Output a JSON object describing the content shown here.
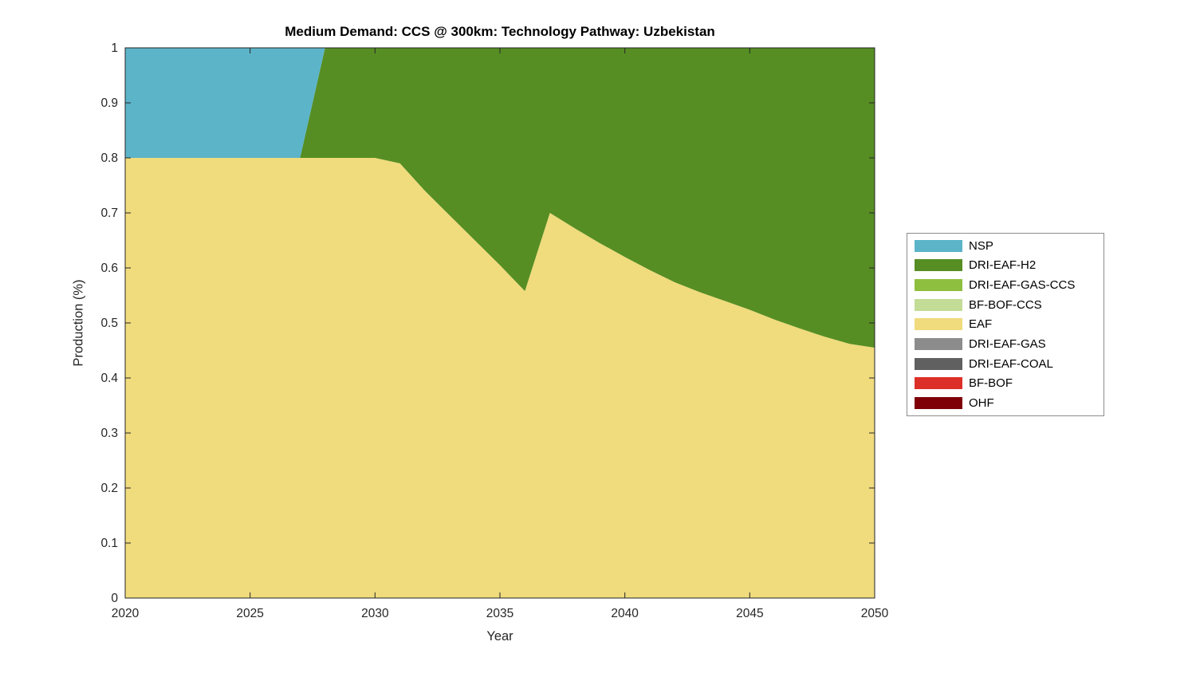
{
  "figure": {
    "title": "Medium Demand: CCS @ 300km: Technology Pathway: Uzbekistan",
    "xlabel": "Year",
    "ylabel": "Production (%)"
  },
  "chart_data": {
    "type": "area",
    "stacked": true,
    "title": "Medium Demand: CCS @ 300km: Technology Pathway: Uzbekistan",
    "xlabel": "Year",
    "ylabel": "Production (%)",
    "xlim": [
      2020,
      2050
    ],
    "ylim": [
      0,
      1
    ],
    "grid": false,
    "legend_position": "right-outside",
    "x_ticks": [
      "2020",
      "2025",
      "2030",
      "2035",
      "2040",
      "2045",
      "2050"
    ],
    "x_tick_values": [
      2020,
      2025,
      2030,
      2035,
      2040,
      2045,
      2050
    ],
    "y_ticks": [
      "0",
      "0.1",
      "0.2",
      "0.3",
      "0.4",
      "0.5",
      "0.6",
      "0.7",
      "0.8",
      "0.9",
      "1"
    ],
    "y_tick_values": [
      0,
      0.1,
      0.2,
      0.3,
      0.4,
      0.5,
      0.6,
      0.7,
      0.8,
      0.9,
      1
    ],
    "x": [
      2020,
      2021,
      2022,
      2023,
      2024,
      2025,
      2026,
      2027,
      2028,
      2029,
      2030,
      2031,
      2032,
      2033,
      2034,
      2035,
      2036,
      2037,
      2038,
      2039,
      2040,
      2041,
      2042,
      2043,
      2044,
      2045,
      2046,
      2047,
      2048,
      2049,
      2050
    ],
    "series": [
      {
        "name": "OHF",
        "color": "#800008",
        "values": [
          0,
          0,
          0,
          0,
          0,
          0,
          0,
          0,
          0,
          0,
          0,
          0,
          0,
          0,
          0,
          0,
          0,
          0,
          0,
          0,
          0,
          0,
          0,
          0,
          0,
          0,
          0,
          0,
          0,
          0,
          0
        ]
      },
      {
        "name": "BF-BOF",
        "color": "#DC2F27",
        "values": [
          0,
          0,
          0,
          0,
          0,
          0,
          0,
          0,
          0,
          0,
          0,
          0,
          0,
          0,
          0,
          0,
          0,
          0,
          0,
          0,
          0,
          0,
          0,
          0,
          0,
          0,
          0,
          0,
          0,
          0,
          0
        ]
      },
      {
        "name": "DRI-EAF-COAL",
        "color": "#606060",
        "values": [
          0,
          0,
          0,
          0,
          0,
          0,
          0,
          0,
          0,
          0,
          0,
          0,
          0,
          0,
          0,
          0,
          0,
          0,
          0,
          0,
          0,
          0,
          0,
          0,
          0,
          0,
          0,
          0,
          0,
          0,
          0
        ]
      },
      {
        "name": "DRI-EAF-GAS",
        "color": "#8C8C8C",
        "values": [
          0,
          0,
          0,
          0,
          0,
          0,
          0,
          0,
          0,
          0,
          0,
          0,
          0,
          0,
          0,
          0,
          0,
          0,
          0,
          0,
          0,
          0,
          0,
          0,
          0,
          0,
          0,
          0,
          0,
          0,
          0
        ]
      },
      {
        "name": "EAF",
        "color": "#F0DB7D",
        "values": [
          0.8,
          0.8,
          0.8,
          0.8,
          0.8,
          0.8,
          0.8,
          0.8,
          0.8,
          0.8,
          0.8,
          0.79,
          0.74,
          0.695,
          0.65,
          0.605,
          0.558,
          0.7,
          0.672,
          0.645,
          0.62,
          0.596,
          0.574,
          0.556,
          0.54,
          0.524,
          0.506,
          0.49,
          0.475,
          0.462,
          0.455
        ]
      },
      {
        "name": "BF-BOF-CCS",
        "color": "#C3DC96",
        "values": [
          0,
          0,
          0,
          0,
          0,
          0,
          0,
          0,
          0,
          0,
          0,
          0,
          0,
          0,
          0,
          0,
          0,
          0,
          0,
          0,
          0,
          0,
          0,
          0,
          0,
          0,
          0,
          0,
          0,
          0,
          0
        ]
      },
      {
        "name": "DRI-EAF-GAS-CCS",
        "color": "#8FBF3F",
        "values": [
          0,
          0,
          0,
          0,
          0,
          0,
          0,
          0,
          0,
          0,
          0,
          0,
          0,
          0,
          0,
          0,
          0,
          0,
          0,
          0,
          0,
          0,
          0,
          0,
          0,
          0,
          0,
          0,
          0,
          0,
          0
        ]
      },
      {
        "name": "DRI-EAF-H2",
        "color": "#568E23",
        "values": [
          0,
          0,
          0,
          0,
          0,
          0,
          0,
          0,
          0.2,
          0.2,
          0.2,
          0.21,
          0.26,
          0.305,
          0.35,
          0.395,
          0.442,
          0.3,
          0.328,
          0.355,
          0.38,
          0.404,
          0.426,
          0.444,
          0.46,
          0.476,
          0.494,
          0.51,
          0.525,
          0.538,
          0.545
        ]
      },
      {
        "name": "NSP",
        "color": "#5CB4C9",
        "values": [
          0.2,
          0.2,
          0.2,
          0.2,
          0.2,
          0.2,
          0.2,
          0.2,
          0,
          0,
          0,
          0,
          0,
          0,
          0,
          0,
          0,
          0,
          0,
          0,
          0,
          0,
          0,
          0,
          0,
          0,
          0,
          0,
          0,
          0,
          0
        ]
      }
    ],
    "legend": [
      "NSP",
      "DRI-EAF-H2",
      "DRI-EAF-GAS-CCS",
      "BF-BOF-CCS",
      "EAF",
      "DRI-EAF-GAS",
      "DRI-EAF-COAL",
      "BF-BOF",
      "OHF"
    ]
  },
  "style": {
    "axis_color": "#262626",
    "tick_label_color": "#262626",
    "background": "#ffffff"
  }
}
